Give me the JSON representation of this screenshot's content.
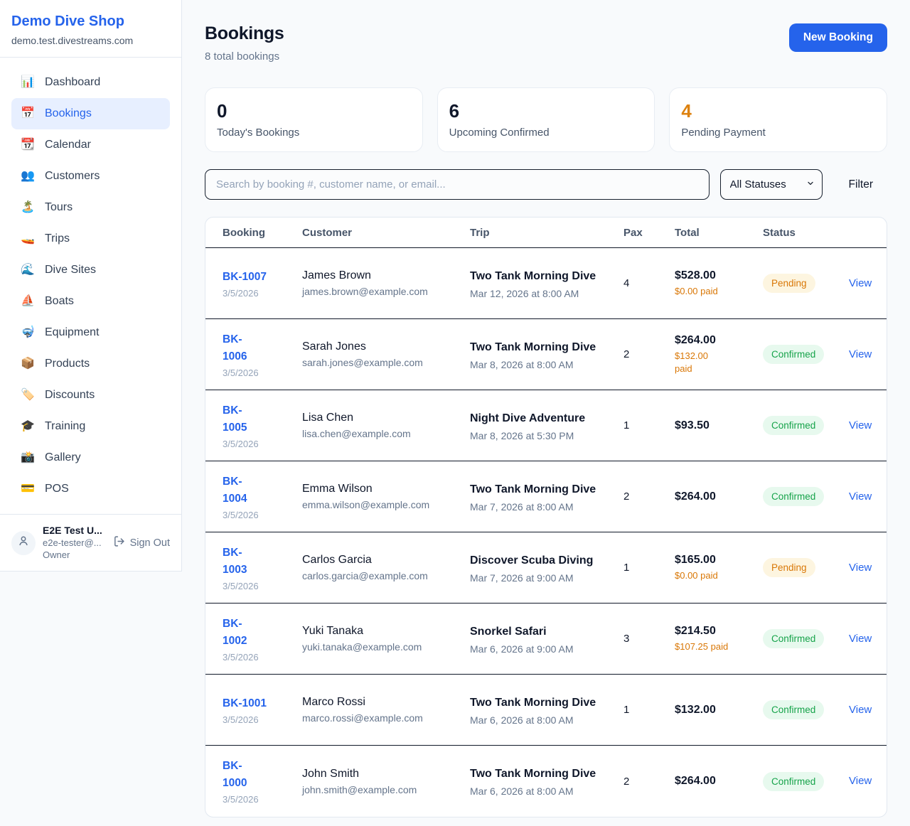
{
  "app": {
    "name": "Demo Dive Shop",
    "domain": "demo.test.divestreams.com"
  },
  "sidebar": {
    "items": [
      {
        "label": "Dashboard",
        "icon": "📊",
        "icon_name": "bar-chart-icon",
        "active": false
      },
      {
        "label": "Bookings",
        "icon": "📅",
        "icon_name": "calendar-icon",
        "active": true
      },
      {
        "label": "Calendar",
        "icon": "📆",
        "icon_name": "tear-off-calendar-icon",
        "active": false
      },
      {
        "label": "Customers",
        "icon": "👥",
        "icon_name": "people-icon",
        "active": false
      },
      {
        "label": "Tours",
        "icon": "🏝️",
        "icon_name": "island-icon",
        "active": false
      },
      {
        "label": "Trips",
        "icon": "🚤",
        "icon_name": "speedboat-icon",
        "active": false
      },
      {
        "label": "Dive Sites",
        "icon": "🌊",
        "icon_name": "wave-icon",
        "active": false
      },
      {
        "label": "Boats",
        "icon": "⛵",
        "icon_name": "sailboat-icon",
        "active": false
      },
      {
        "label": "Equipment",
        "icon": "🤿",
        "icon_name": "diving-mask-icon",
        "active": false
      },
      {
        "label": "Products",
        "icon": "📦",
        "icon_name": "package-icon",
        "active": false
      },
      {
        "label": "Discounts",
        "icon": "🏷️",
        "icon_name": "tag-icon",
        "active": false
      },
      {
        "label": "Training",
        "icon": "🎓",
        "icon_name": "graduation-cap-icon",
        "active": false
      },
      {
        "label": "Gallery",
        "icon": "📸",
        "icon_name": "camera-icon",
        "active": false
      },
      {
        "label": "POS",
        "icon": "💳",
        "icon_name": "credit-card-icon",
        "active": false
      }
    ],
    "user": {
      "name": "E2E Test U...",
      "email": "e2e-tester@...",
      "role": "Owner",
      "sign_out": "Sign Out"
    }
  },
  "header": {
    "title": "Bookings",
    "subtitle": "8 total bookings",
    "new_booking": "New Booking"
  },
  "stats": [
    {
      "value": "0",
      "label": "Today's Bookings",
      "accent": "#0f172a"
    },
    {
      "value": "6",
      "label": "Upcoming Confirmed",
      "accent": "#0f172a"
    },
    {
      "value": "4",
      "label": "Pending Payment",
      "accent": "#dd820f"
    }
  ],
  "filters": {
    "search_placeholder": "Search by booking #, customer name, or email...",
    "status_selected": "All Statuses",
    "filter_label": "Filter"
  },
  "table": {
    "columns": [
      "Booking",
      "Customer",
      "Trip",
      "Pax",
      "Total",
      "Status"
    ],
    "view_label": "View",
    "rows": [
      {
        "id": "BK-1007",
        "id_wrapped": false,
        "date": "3/5/2026",
        "customer": "James Brown",
        "email": "james.brown@example.com",
        "trip": "Two Tank Morning Dive",
        "trip_datetime": "Mar 12, 2026 at 8:00 AM",
        "pax": "4",
        "total": "$528.00",
        "paid": "$0.00 paid",
        "paid_wrapped": false,
        "status": "Pending"
      },
      {
        "id": "BK-1006",
        "id_wrapped": true,
        "date": "3/5/2026",
        "customer": "Sarah Jones",
        "email": "sarah.jones@example.com",
        "trip": "Two Tank Morning Dive",
        "trip_datetime": "Mar 8, 2026 at 8:00 AM",
        "pax": "2",
        "total": "$264.00",
        "paid": "$132.00 paid",
        "paid_wrapped": true,
        "status": "Confirmed"
      },
      {
        "id": "BK-1005",
        "id_wrapped": true,
        "date": "3/5/2026",
        "customer": "Lisa Chen",
        "email": "lisa.chen@example.com",
        "trip": "Night Dive Adventure",
        "trip_datetime": "Mar 8, 2026 at 5:30 PM",
        "pax": "1",
        "total": "$93.50",
        "paid": null,
        "paid_wrapped": false,
        "status": "Confirmed"
      },
      {
        "id": "BK-1004",
        "id_wrapped": true,
        "date": "3/5/2026",
        "customer": "Emma Wilson",
        "email": "emma.wilson@example.com",
        "trip": "Two Tank Morning Dive",
        "trip_datetime": "Mar 7, 2026 at 8:00 AM",
        "pax": "2",
        "total": "$264.00",
        "paid": null,
        "paid_wrapped": false,
        "status": "Confirmed"
      },
      {
        "id": "BK-1003",
        "id_wrapped": true,
        "date": "3/5/2026",
        "customer": "Carlos Garcia",
        "email": "carlos.garcia@example.com",
        "trip": "Discover Scuba Diving",
        "trip_datetime": "Mar 7, 2026 at 9:00 AM",
        "pax": "1",
        "total": "$165.00",
        "paid": "$0.00 paid",
        "paid_wrapped": false,
        "status": "Pending"
      },
      {
        "id": "BK-1002",
        "id_wrapped": true,
        "date": "3/5/2026",
        "customer": "Yuki Tanaka",
        "email": "yuki.tanaka@example.com",
        "trip": "Snorkel Safari",
        "trip_datetime": "Mar 6, 2026 at 9:00 AM",
        "pax": "3",
        "total": "$214.50",
        "paid": "$107.25 paid",
        "paid_wrapped": false,
        "status": "Confirmed"
      },
      {
        "id": "BK-1001",
        "id_wrapped": false,
        "date": "3/5/2026",
        "customer": "Marco Rossi",
        "email": "marco.rossi@example.com",
        "trip": "Two Tank Morning Dive",
        "trip_datetime": "Mar 6, 2026 at 8:00 AM",
        "pax": "1",
        "total": "$132.00",
        "paid": null,
        "paid_wrapped": false,
        "status": "Confirmed"
      },
      {
        "id": "BK-1000",
        "id_wrapped": true,
        "date": "3/5/2026",
        "customer": "John Smith",
        "email": "john.smith@example.com",
        "trip": "Two Tank Morning Dive",
        "trip_datetime": "Mar 6, 2026 at 8:00 AM",
        "pax": "2",
        "total": "$264.00",
        "paid": null,
        "paid_wrapped": false,
        "status": "Confirmed"
      }
    ]
  },
  "colors": {
    "primary": "#2563eb",
    "pending_text": "#d97706",
    "pending_bg": "#fdf5e0",
    "confirmed_text": "#16a34a",
    "confirmed_bg": "#e7f9ee",
    "row_border": "#101828",
    "card_border": "#e2e8f0",
    "page_bg": "#f8fafc"
  }
}
